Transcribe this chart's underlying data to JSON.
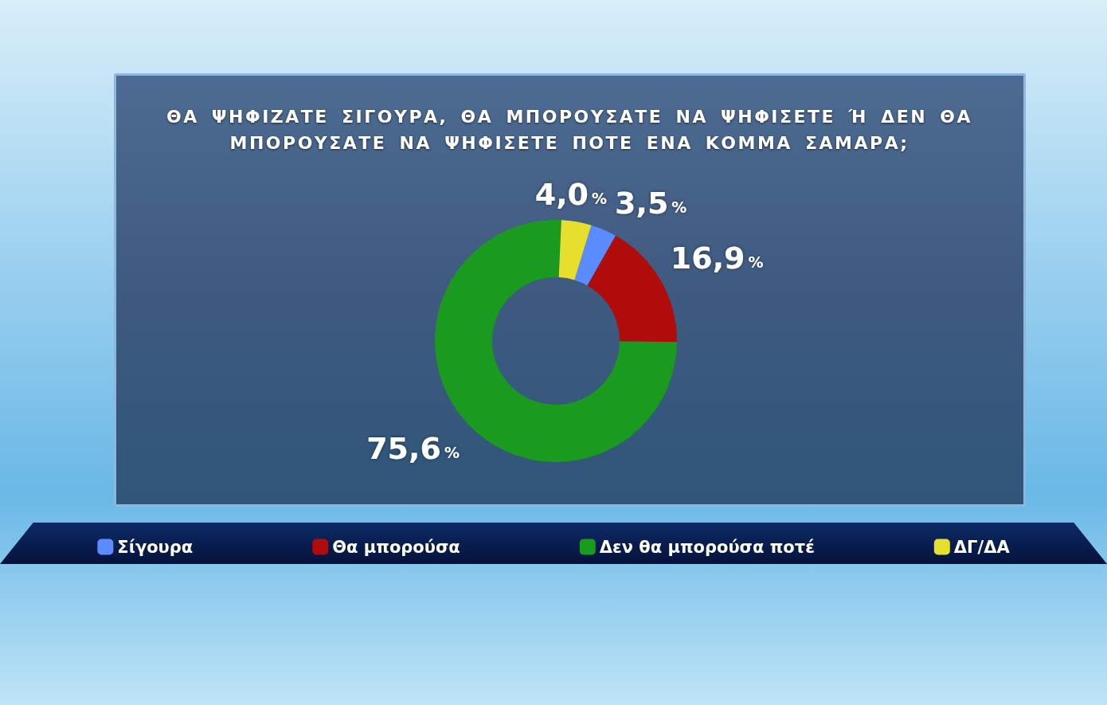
{
  "chart_data": {
    "type": "donut",
    "title": "ΘΑ ΨΗΦΙΖΑΤΕ ΣΙΓΟΥΡΑ, ΘΑ ΜΠΟΡΟΥΣΑΤΕ ΝΑ ΨΗΦΙΣΕΤΕ Ή ΔΕΝ ΘΑ ΜΠΟΡΟΥΣΑΤΕ ΝΑ ΨΗΦΙΣΕΤΕ ΠΟΤΕ ΕΝΑ ΚΟΜΜΑ ΣΑΜΑΡΑ;",
    "categories": [
      "Σίγουρα",
      "Θα μπορούσα",
      "Δεν θα μπορούσα ποτέ",
      "ΔΓ/ΔΑ"
    ],
    "values": [
      3.5,
      16.9,
      75.6,
      4.0
    ],
    "value_labels": [
      "3,5%",
      "16,9%",
      "75,6%",
      "4,0%"
    ],
    "colors": [
      "#5b8cff",
      "#b00c0c",
      "#1a9a1f",
      "#e6df2e"
    ],
    "legend": "bottom"
  }
}
